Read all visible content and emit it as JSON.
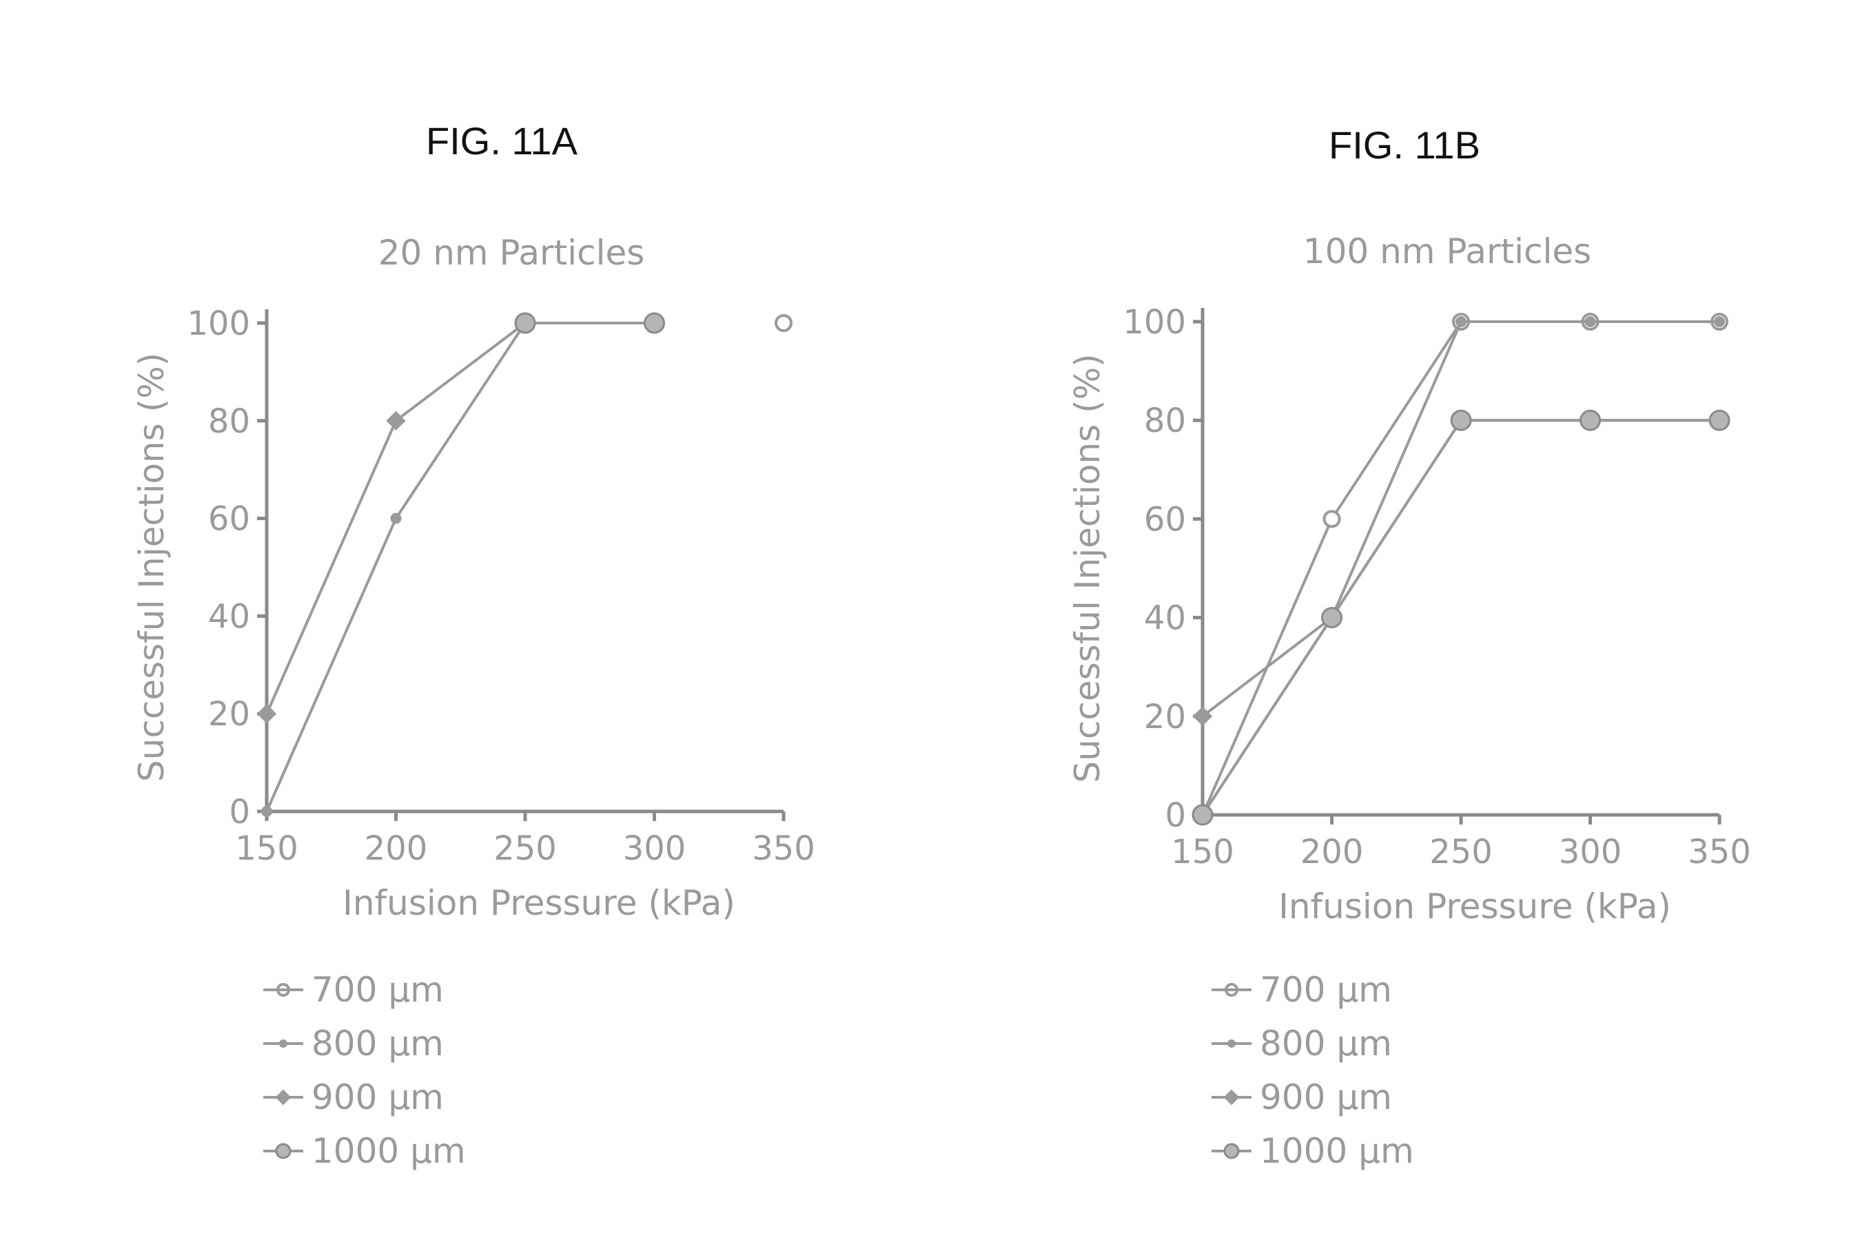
{
  "figures": [
    {
      "label": "FIG. 11A"
    },
    {
      "label": "FIG. 11B"
    }
  ],
  "chart_data": [
    {
      "type": "line",
      "title": "20 nm Particles",
      "xlabel": "Infusion Pressure (kPa)",
      "ylabel": "Successful Injections (%)",
      "x": [
        150,
        200,
        250,
        300,
        350
      ],
      "x_ticks": [
        "150",
        "200",
        "250",
        "300",
        "350"
      ],
      "y_ticks": [
        "0",
        "20",
        "40",
        "60",
        "80",
        "100"
      ],
      "xlim": [
        150,
        350
      ],
      "ylim": [
        0,
        100
      ],
      "legend_position": "bottom-left",
      "series_color": "#9a9a9a",
      "series": [
        {
          "name": "700 µm",
          "values": [
            null,
            null,
            null,
            null,
            100
          ]
        },
        {
          "name": "800 µm",
          "values": [
            0,
            60,
            100,
            null,
            null
          ]
        },
        {
          "name": "900 µm",
          "values": [
            20,
            80,
            100,
            null,
            null
          ]
        },
        {
          "name": "1000 µm",
          "values": [
            null,
            null,
            100,
            100,
            null
          ]
        }
      ]
    },
    {
      "type": "line",
      "title": "100 nm Particles",
      "xlabel": "Infusion Pressure (kPa)",
      "ylabel": "Successful Injections (%)",
      "x": [
        150,
        200,
        250,
        300,
        350
      ],
      "x_ticks": [
        "150",
        "200",
        "250",
        "300",
        "350"
      ],
      "y_ticks": [
        "0",
        "20",
        "40",
        "60",
        "80",
        "100"
      ],
      "xlim": [
        150,
        350
      ],
      "ylim": [
        0,
        100
      ],
      "legend_position": "bottom-left",
      "series_color": "#9a9a9a",
      "series": [
        {
          "name": "700 µm",
          "values": [
            0,
            60,
            100,
            100,
            100
          ]
        },
        {
          "name": "800 µm",
          "values": [
            0,
            40,
            100,
            100,
            100
          ]
        },
        {
          "name": "900 µm",
          "values": [
            20,
            40,
            80,
            80,
            80
          ]
        },
        {
          "name": "1000 µm",
          "values": [
            0,
            40,
            80,
            80,
            80
          ]
        }
      ]
    }
  ]
}
